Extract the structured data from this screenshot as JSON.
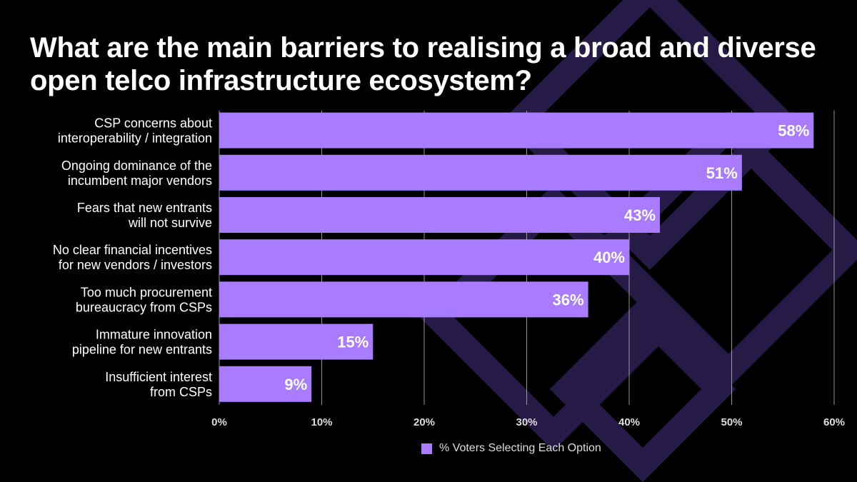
{
  "title": "What are the main barriers to realising a broad and diverse open telco infrastructure ecosystem?",
  "colors": {
    "bar": "#a87bff",
    "background": "#000000",
    "decoration": "#261a47",
    "grid": "#bbbbbb"
  },
  "chart_data": {
    "type": "bar",
    "orientation": "horizontal",
    "title": "What are the main barriers to realising a broad and diverse open telco infrastructure ecosystem?",
    "categories": [
      [
        "CSP concerns about",
        "interoperability / integration"
      ],
      [
        "Ongoing dominance of the",
        "incumbent major vendors"
      ],
      [
        "Fears that new entrants",
        "will not survive"
      ],
      [
        "No clear financial incentives",
        "for new vendors / investors"
      ],
      [
        "Too much procurement",
        "bureaucracy from CSPs"
      ],
      [
        "Immature innovation",
        "pipeline for new entrants"
      ],
      [
        "Insufficient interest",
        "from CSPs"
      ]
    ],
    "series": [
      {
        "name": "% Voters Selecting Each Option",
        "values": [
          58,
          51,
          43,
          40,
          36,
          15,
          9
        ]
      }
    ],
    "data_labels": [
      "58%",
      "51%",
      "43%",
      "40%",
      "36%",
      "15%",
      "9%"
    ],
    "xlim": [
      0,
      60
    ],
    "x_ticks": [
      "0%",
      "10%",
      "20%",
      "30%",
      "40%",
      "50%",
      "60%"
    ],
    "grid": true,
    "legend": "bottom"
  }
}
